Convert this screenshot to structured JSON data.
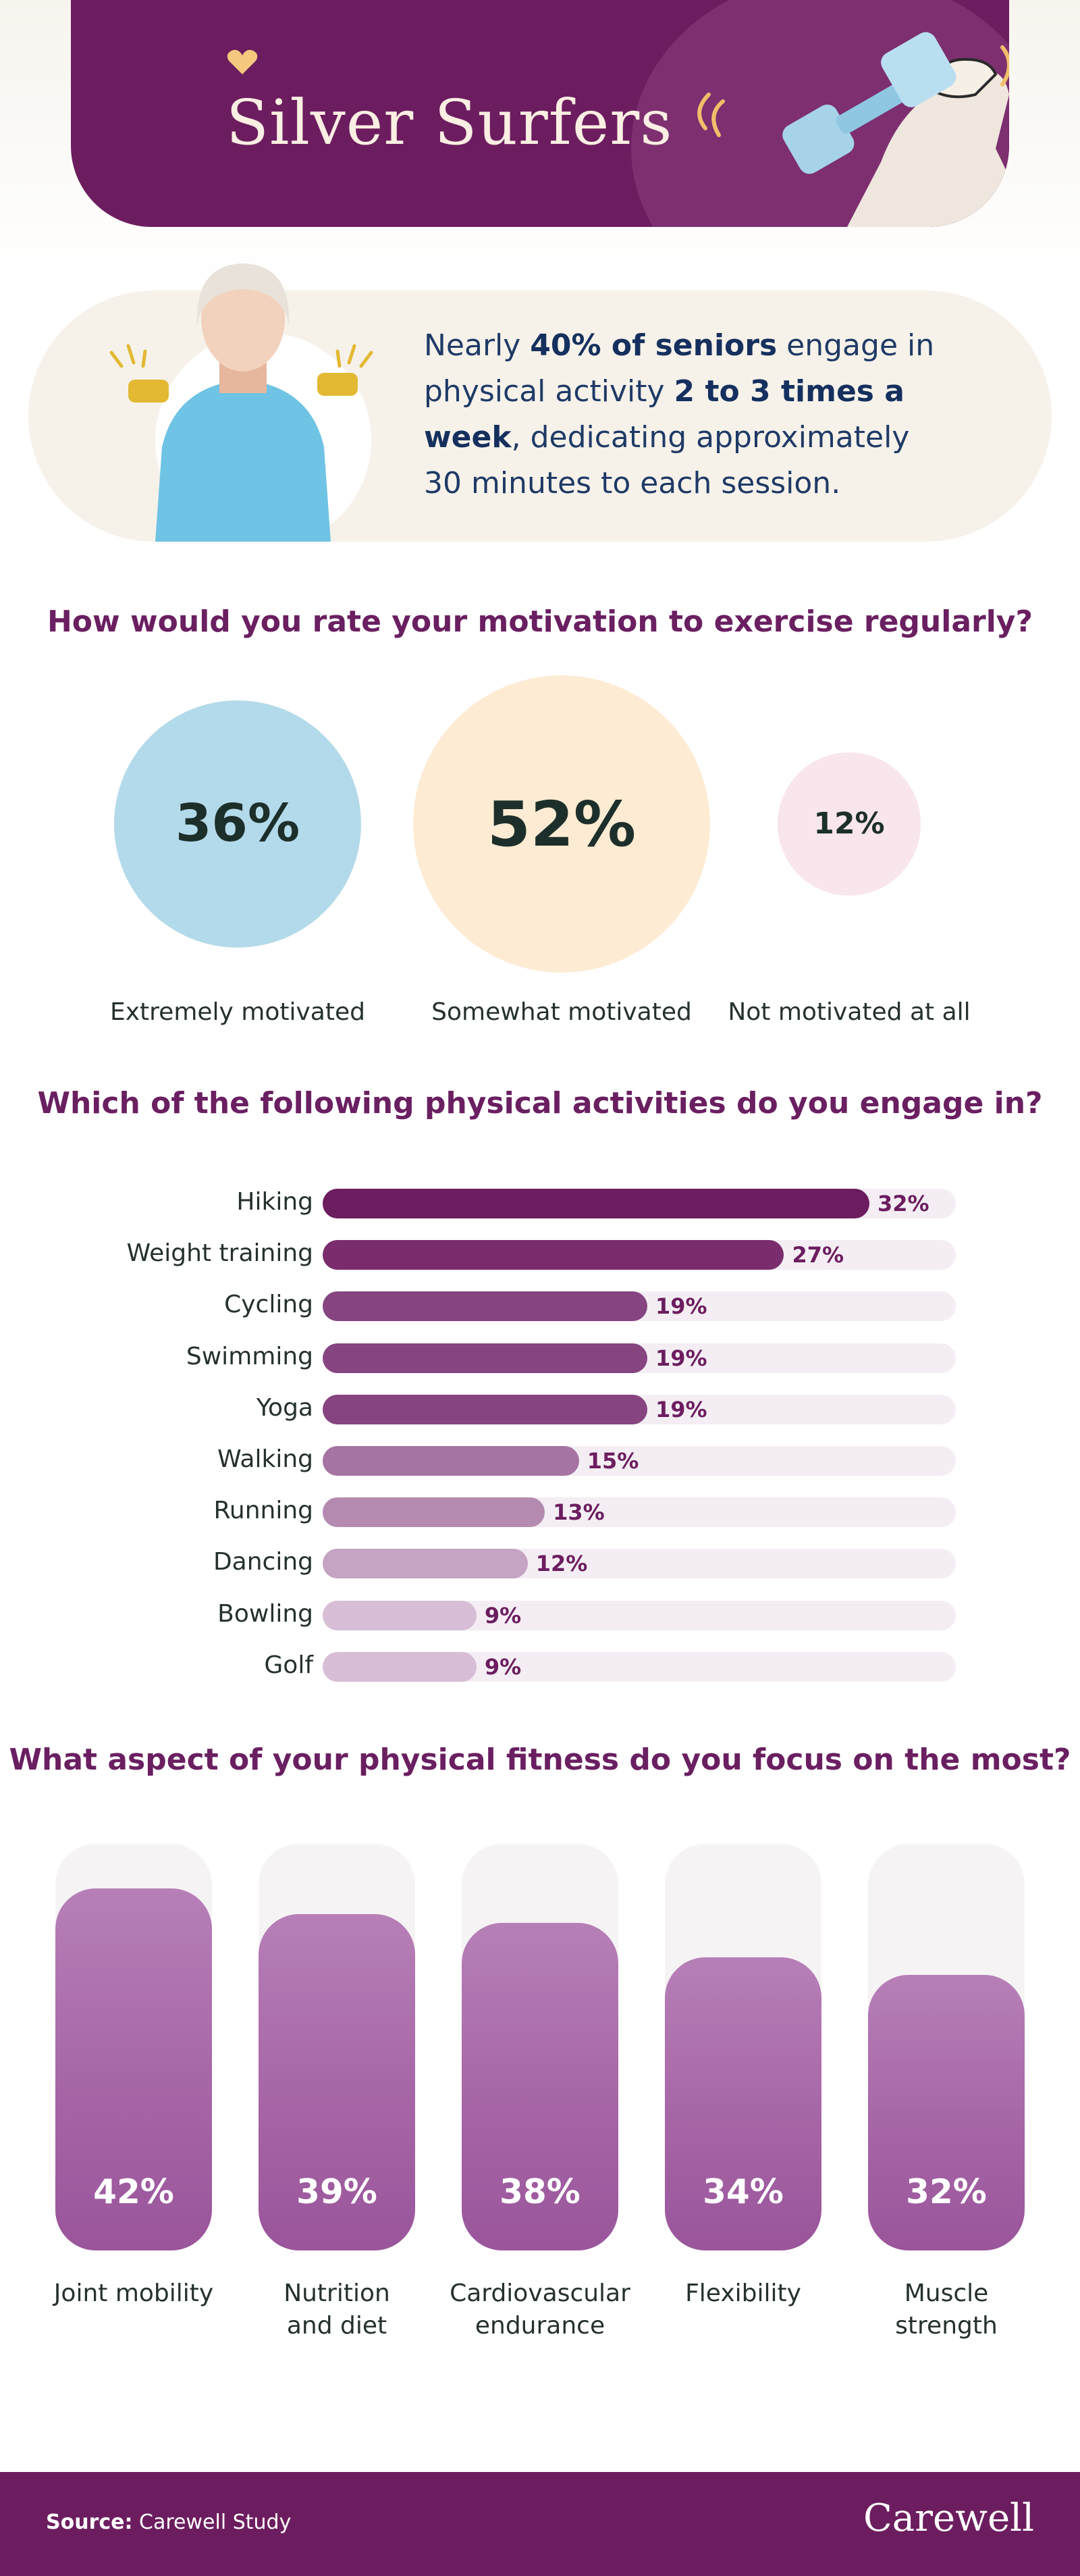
{
  "header": {
    "title": "Silver Surfers"
  },
  "intro": {
    "parts": [
      {
        "text": "Nearly ",
        "bold": false
      },
      {
        "text": "40% of seniors",
        "bold": true
      },
      {
        "text": " engage in physical activity ",
        "bold": false
      },
      {
        "text": "2 to 3 times a week",
        "bold": true
      },
      {
        "text": ", dedicating approximately 30 minutes to each session.",
        "bold": false
      }
    ]
  },
  "chart_data": [
    {
      "type": "bubble",
      "title": "How would you rate your motivation to exercise regularly?",
      "categories": [
        "Extremely motivated",
        "Somewhat motivated",
        "Not motivated at all"
      ],
      "values": [
        36,
        52,
        12
      ],
      "value_labels": [
        "36%",
        "52%",
        "12%"
      ],
      "colors": [
        "#b3daea",
        "#fdebd3",
        "#f9e6ec"
      ]
    },
    {
      "type": "bar",
      "orientation": "horizontal",
      "title": "Which of the following physical activities do you engage in?",
      "categories": [
        "Hiking",
        "Weight training",
        "Cycling",
        "Swimming",
        "Yoga",
        "Walking",
        "Running",
        "Dancing",
        "Bowling",
        "Golf"
      ],
      "values": [
        32,
        27,
        19,
        19,
        19,
        15,
        13,
        12,
        9,
        9
      ],
      "value_labels": [
        "32%",
        "27%",
        "19%",
        "19%",
        "19%",
        "15%",
        "13%",
        "12%",
        "9%",
        "9%"
      ],
      "colors": [
        "#6c1d5f",
        "#7a2c6c",
        "#864481",
        "#864481",
        "#864481",
        "#a574a2",
        "#b48ab1",
        "#c5a3c2",
        "#d7bdd5",
        "#d7bdd5"
      ],
      "xlim": [
        0,
        36
      ]
    },
    {
      "type": "bar",
      "orientation": "vertical",
      "title": "What aspect of your physical fitness do you focus on the most?",
      "categories": [
        "Joint mobility",
        "Nutrition and diet",
        "Cardiovascular endurance",
        "Flexibility",
        "Muscle strength"
      ],
      "label_lines": [
        [
          "Joint mobility"
        ],
        [
          "Nutrition",
          "and diet"
        ],
        [
          "Cardiovascular",
          "endurance"
        ],
        [
          "Flexibility"
        ],
        [
          "Muscle",
          "strength"
        ]
      ],
      "values": [
        42,
        39,
        38,
        34,
        32
      ],
      "value_labels": [
        "42%",
        "39%",
        "38%",
        "34%",
        "32%"
      ],
      "ylim": [
        0,
        46
      ],
      "color": "#a666a6"
    }
  ],
  "footer": {
    "source_label": "Source:",
    "source_value": "Carewell Study",
    "brand": "Carewell"
  }
}
